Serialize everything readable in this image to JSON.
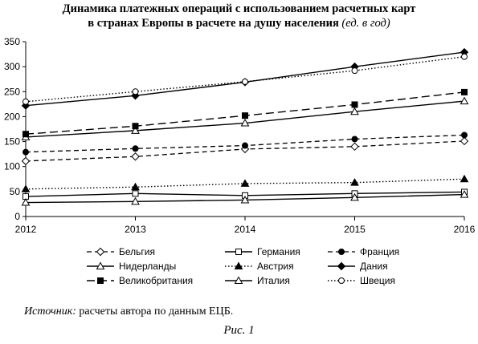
{
  "title_line1": "Динамика платежных операций с использованием расчетных карт",
  "title_line2": "в странах Европы в расчете на душу населения",
  "title_unit": "(ед. в год)",
  "source_label": "Источник:",
  "source_text": "расчеты автора по данным ЕЦБ.",
  "figure_caption": "Рис. 1",
  "chart_data": {
    "type": "line",
    "title": "Динамика платежных операций с использованием расчетных карт в странах Европы в расчете на душу населения (ед. в год)",
    "x": [
      2012,
      2013,
      2014,
      2015,
      2016
    ],
    "xlim": [
      2012,
      2016
    ],
    "ylim": [
      0,
      350
    ],
    "yticks": [
      0,
      50,
      100,
      150,
      200,
      250,
      300,
      350
    ],
    "grid": false,
    "legend_position": "bottom",
    "series": [
      {
        "name": "Бельгия",
        "marker": "diamond-open",
        "dash": "dashed",
        "values": [
          111,
          120,
          135,
          140,
          151
        ]
      },
      {
        "name": "Германия",
        "marker": "square-open",
        "dash": "solid",
        "values": [
          40,
          46,
          42,
          46,
          49
        ]
      },
      {
        "name": "Франция",
        "marker": "circle-filled",
        "dash": "dashed",
        "values": [
          129,
          136,
          142,
          155,
          163
        ]
      },
      {
        "name": "Нидерланды",
        "marker": "triangle-open",
        "dash": "solid",
        "values": [
          159,
          172,
          187,
          210,
          231
        ]
      },
      {
        "name": "Австрия",
        "marker": "triangle-filled",
        "dash": "dotted",
        "values": [
          55,
          59,
          66,
          68,
          75
        ]
      },
      {
        "name": "Дания",
        "marker": "diamond-filled",
        "dash": "solid",
        "values": [
          222,
          242,
          269,
          300,
          329
        ]
      },
      {
        "name": "Великобритания",
        "marker": "square-filled",
        "dash": "long-dashed",
        "values": [
          165,
          181,
          202,
          224,
          249
        ]
      },
      {
        "name": "Италия",
        "marker": "triangle-open",
        "dash": "solid",
        "values": [
          28,
          30,
          33,
          38,
          44
        ]
      },
      {
        "name": "Швеция",
        "marker": "circle-open",
        "dash": "dotted",
        "values": [
          230,
          250,
          270,
          292,
          320
        ]
      }
    ]
  }
}
